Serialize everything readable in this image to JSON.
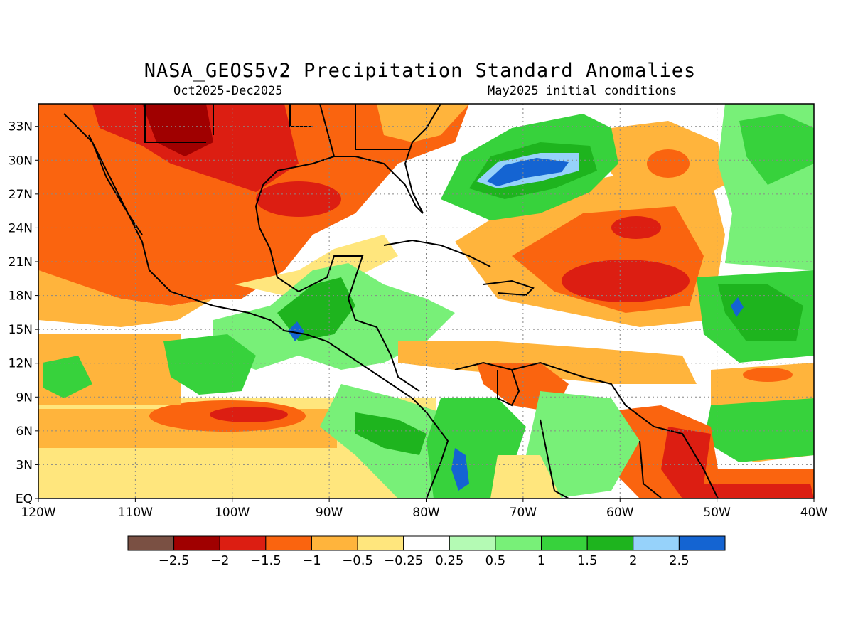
{
  "title": "NASA_GEOS5v2 Precipitation Standard Anomalies",
  "period": "Oct2025-Dec2025",
  "initial_conditions": "May2025 initial conditions",
  "map": {
    "lon_range": [
      -120,
      -40
    ],
    "lat_range": [
      0,
      35
    ],
    "lat_ticks": [
      "33N",
      "30N",
      "27N",
      "24N",
      "21N",
      "18N",
      "15N",
      "12N",
      "9N",
      "6N",
      "3N",
      "EQ"
    ],
    "lat_values": [
      33,
      30,
      27,
      24,
      21,
      18,
      15,
      12,
      9,
      6,
      3,
      0
    ],
    "lon_ticks": [
      "120W",
      "110W",
      "100W",
      "90W",
      "80W",
      "70W",
      "60W",
      "50W",
      "40W"
    ],
    "lon_values": [
      -120,
      -110,
      -100,
      -90,
      -80,
      -70,
      -60,
      -50,
      -40
    ],
    "grid": "dotted"
  },
  "colors": {
    "lt-2.5": "#7a5043",
    "-2.5": "#a00000",
    "-2": "#dc1e12",
    "-1.5": "#fa640f",
    "-1": "#ffb43c",
    "-0.5": "#ffe67d",
    "0": "#ffffff",
    "0.25": "#b4fab4",
    "0.5": "#78f078",
    "1": "#37d23c",
    "1.5": "#1eb41e",
    "2": "#96d2fa",
    "2.5": "#1464d2"
  },
  "colorbar": {
    "colors": [
      "#7a5043",
      "#a00000",
      "#dc1e12",
      "#fa640f",
      "#ffb43c",
      "#ffe67d",
      "#ffffff",
      "#b4fab4",
      "#78f078",
      "#37d23c",
      "#1eb41e",
      "#96d2fa",
      "#1464d2"
    ],
    "labels": [
      "−2.5",
      "−2",
      "−1.5",
      "−1",
      "−0.5",
      "−0.25",
      "0.25",
      "0.5",
      "1",
      "1.5",
      "2",
      "2.5"
    ]
  }
}
